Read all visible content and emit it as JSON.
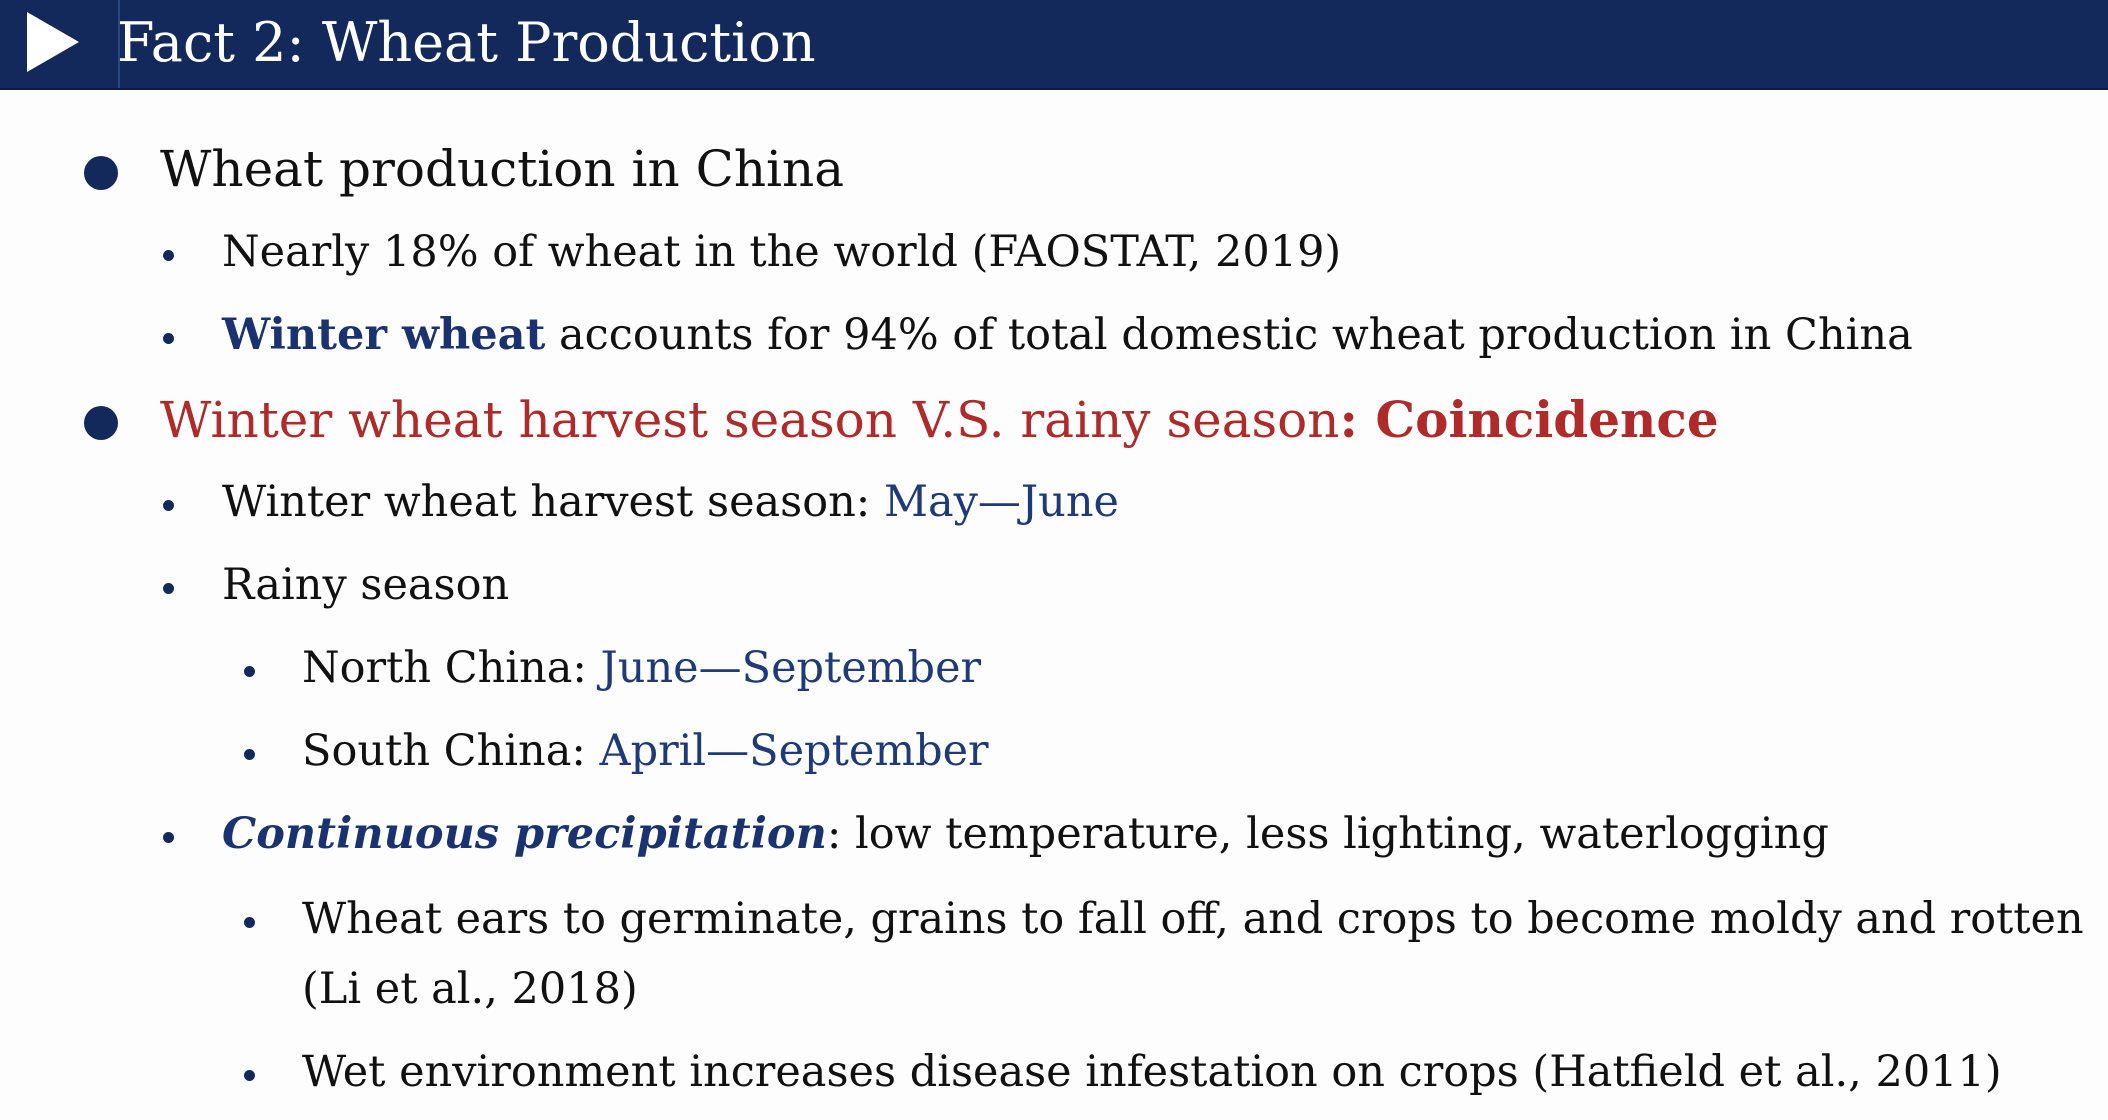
{
  "header": {
    "title": "Fact 2: Wheat Production",
    "icon": "play-triangle-icon",
    "background": "#13295b"
  },
  "bullets": {
    "b1": {
      "text": "Wheat production in China"
    },
    "b1_1": {
      "text": "Nearly 18% of wheat in the world (FAOSTAT, 2019)"
    },
    "b1_2": {
      "highlight": "Winter wheat",
      "rest": " accounts for 94% of total domestic wheat production in China"
    },
    "b2": {
      "text": "Winter wheat harvest season V.S. rainy season",
      "emphasis": ": Coincidence"
    },
    "b2_1": {
      "label": "Winter wheat harvest season: ",
      "value": "May—June"
    },
    "b2_2": {
      "text": "Rainy season"
    },
    "b2_2_1": {
      "label": "North China: ",
      "value": "June—September"
    },
    "b2_2_2": {
      "label": "South China: ",
      "value": "April—September"
    },
    "b2_3": {
      "highlight": "Continuous precipitation",
      "rest": ": low temperature, less lighting, waterlogging"
    },
    "b2_3_1": {
      "line1": "Wheat ears to germinate, grains to fall off, and crops to become moldy and rotten",
      "line2": "(Li et al., 2018)"
    },
    "b2_3_2": {
      "text": "Wet environment increases disease infestation on crops (Hatfield et al., 2011)"
    }
  },
  "colors": {
    "navy": "#13295b",
    "accent_blue": "#1f3a78",
    "red": "#b02a2a"
  }
}
